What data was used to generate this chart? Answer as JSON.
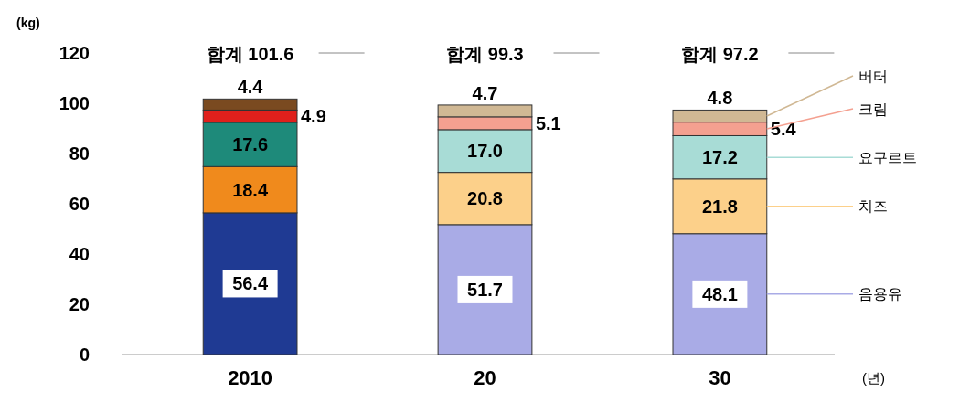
{
  "chart_data": {
    "type": "bar",
    "stacked": true,
    "ylabel": "(kg)",
    "xlabel": "(년)",
    "categories": [
      "2010",
      "20",
      "30"
    ],
    "series": [
      {
        "name": "음용유",
        "colors": [
          "#1f3a93",
          "#a9abe6",
          "#a9abe6"
        ],
        "values": [
          56.4,
          51.7,
          48.1
        ]
      },
      {
        "name": "치즈",
        "colors": [
          "#f08a1c",
          "#fcd08a",
          "#fcd08a"
        ],
        "values": [
          18.4,
          20.8,
          21.8
        ]
      },
      {
        "name": "요구르트",
        "colors": [
          "#1e8a7a",
          "#a8dcd6",
          "#a8dcd6"
        ],
        "values": [
          17.6,
          17.0,
          17.2
        ],
        "value_labels": [
          "17.6",
          "17.0",
          "17.2"
        ]
      },
      {
        "name": "크림",
        "colors": [
          "#e0201c",
          "#f4a090",
          "#f4a090"
        ],
        "values": [
          4.9,
          5.1,
          5.4
        ]
      },
      {
        "name": "버터",
        "colors": [
          "#7a4a20",
          "#d0b894",
          "#d0b894"
        ],
        "values": [
          4.4,
          4.7,
          4.8
        ]
      }
    ],
    "totals": [
      "합계 101.6",
      "합계 99.3",
      "합계 97.2"
    ],
    "data_labels": true,
    "legend": "right",
    "ylim": [
      0,
      120
    ],
    "yticks": [
      0,
      20,
      40,
      60,
      80,
      100,
      120
    ],
    "grid": false
  }
}
